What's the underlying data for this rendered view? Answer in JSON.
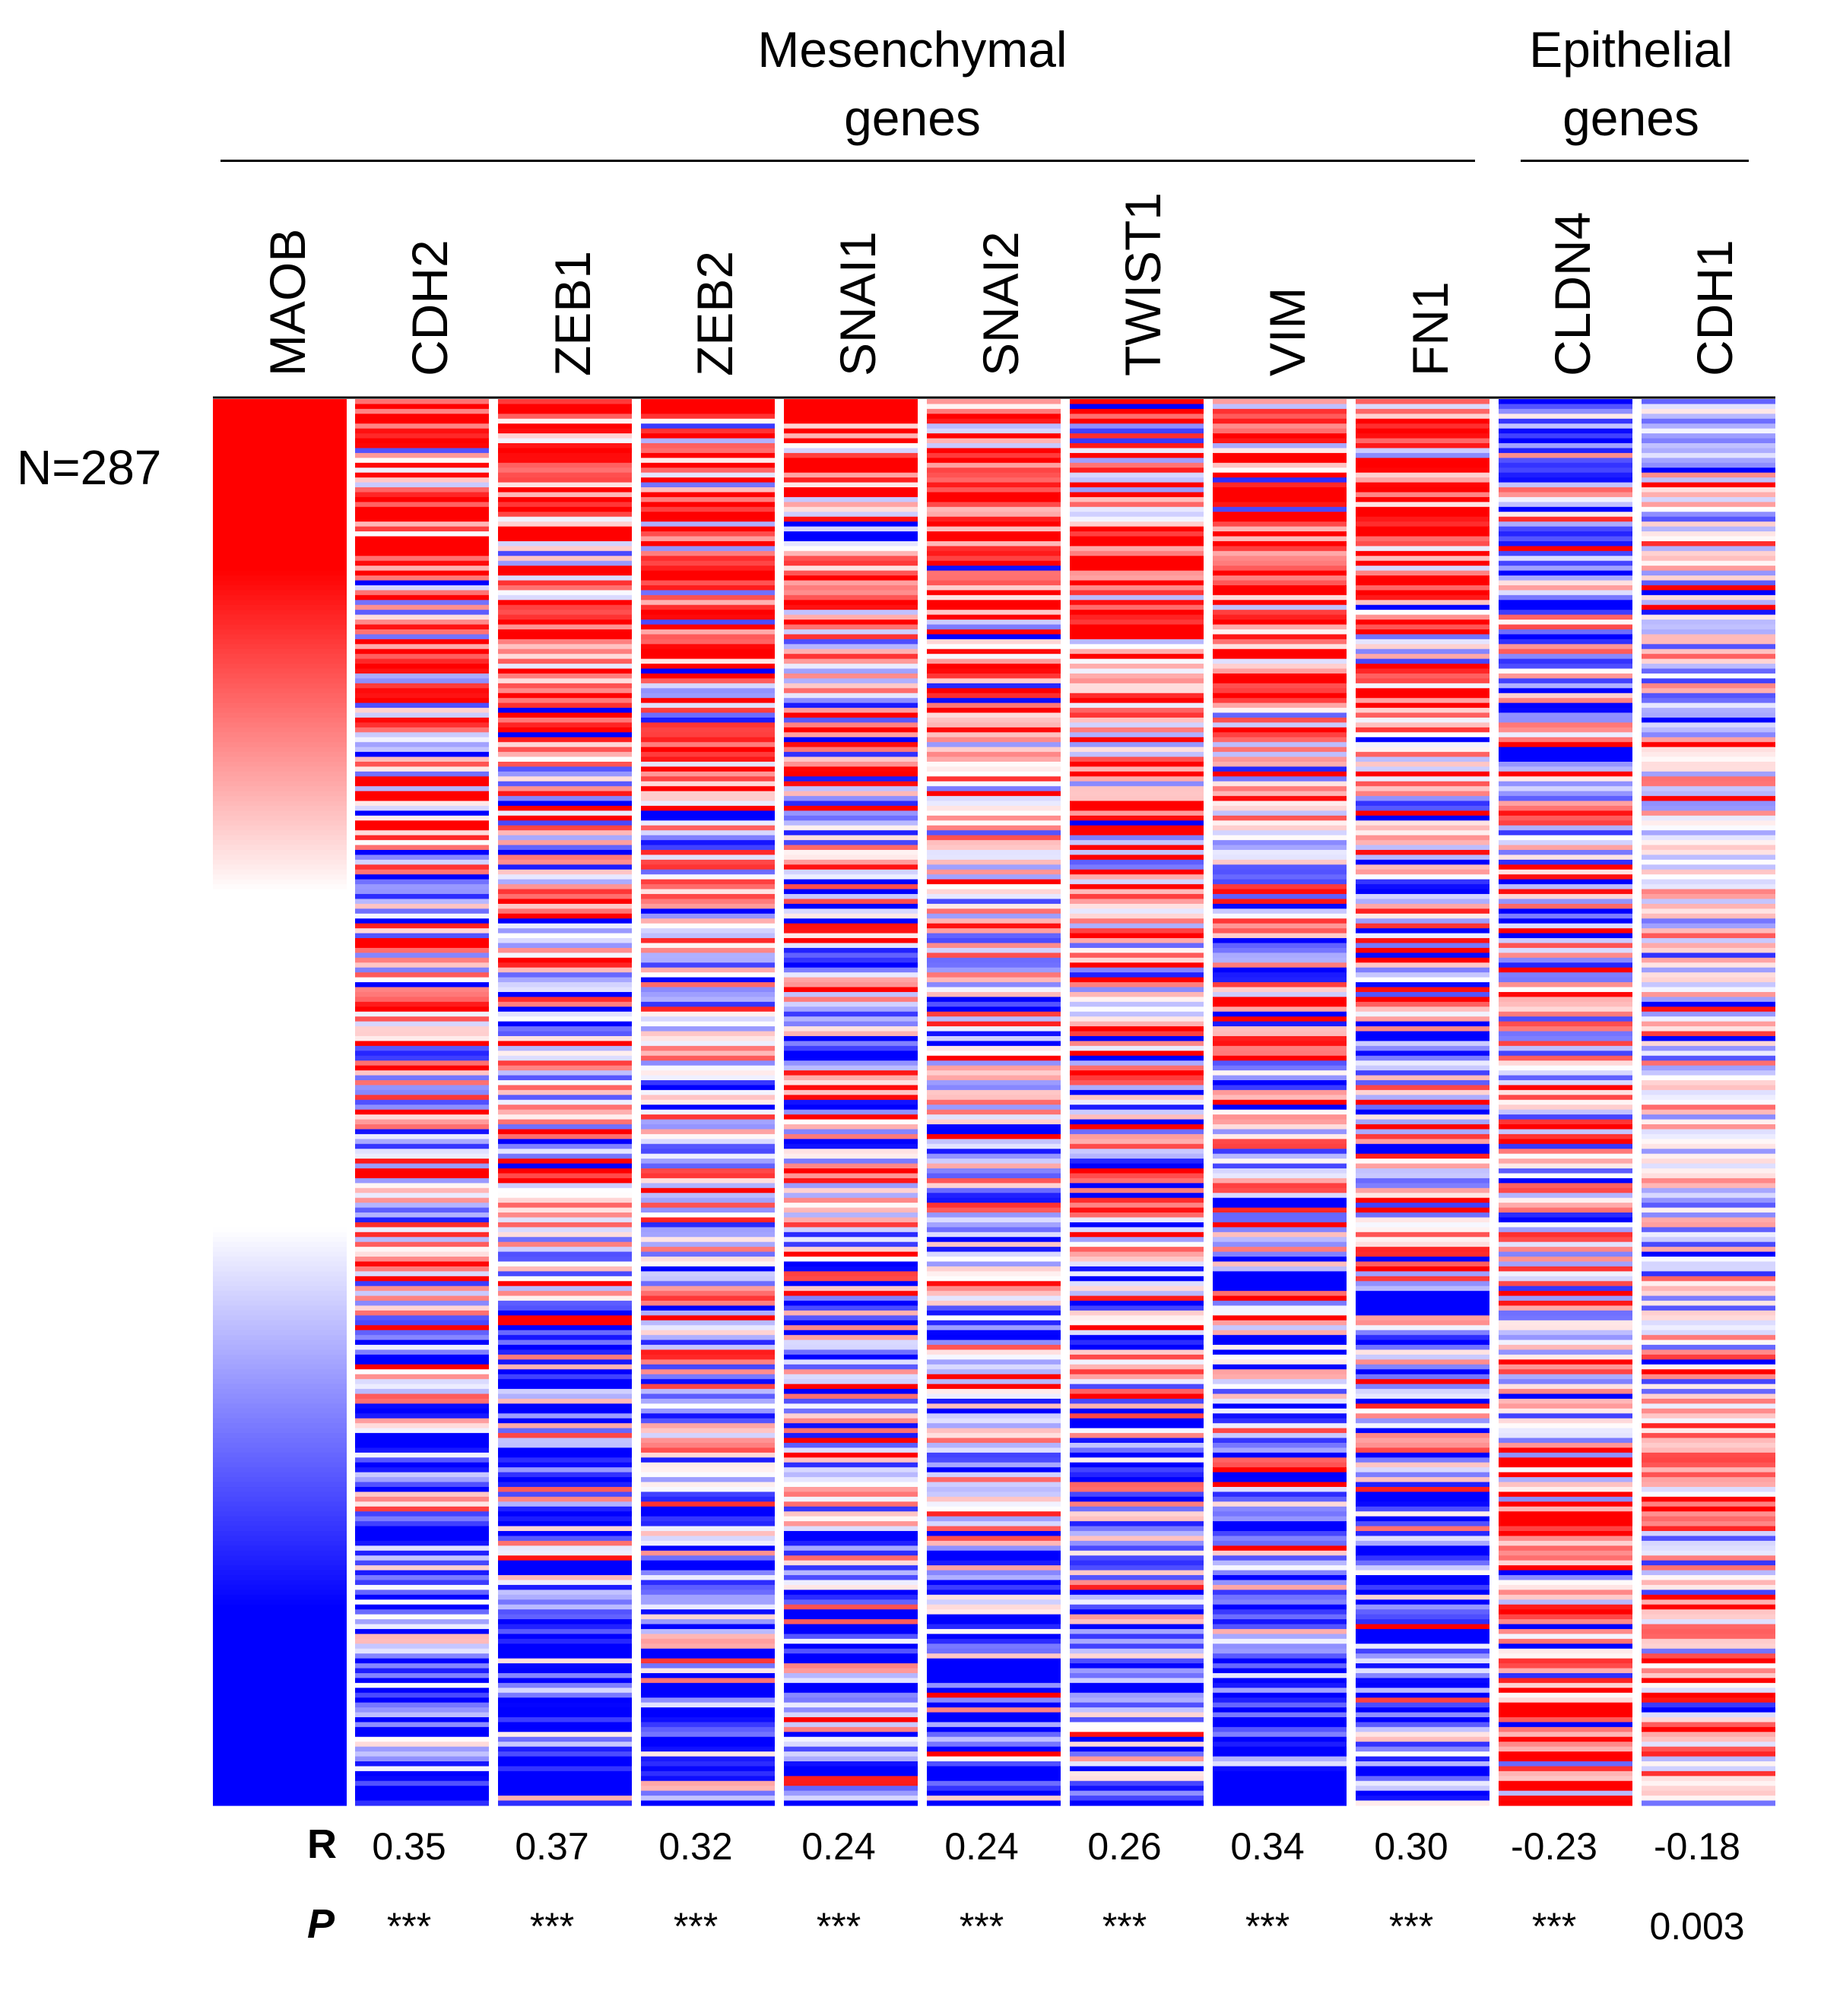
{
  "chart_data": {
    "type": "heatmap",
    "n_label": "N=287",
    "n_samples": 287,
    "groups": [
      {
        "name": "Mesenchymal genes",
        "line1": "Mesenchymal",
        "line2": "genes",
        "genes": [
          "CDH2",
          "ZEB1",
          "ZEB2",
          "SNAI1",
          "SNAI2",
          "TWIST1",
          "VIM",
          "FN1"
        ]
      },
      {
        "name": "Epithelial genes",
        "line1": "Epithelial",
        "line2": "genes",
        "genes": [
          "CLDN4",
          "CDH1"
        ]
      }
    ],
    "columns": [
      "MAOB",
      "CDH2",
      "ZEB1",
      "ZEB2",
      "SNAI1",
      "SNAI2",
      "TWIST1",
      "VIM",
      "FN1",
      "CLDN4",
      "CDH1"
    ],
    "sort_by": "MAOB",
    "color_high": "#ff0000",
    "color_mid": "#ffffff",
    "color_low": "#0000ff",
    "row_labels": {
      "r": "R",
      "p": "P"
    },
    "R": [
      "0.35",
      "0.37",
      "0.32",
      "0.24",
      "0.24",
      "0.26",
      "0.34",
      "0.30",
      "-0.23",
      "-0.18"
    ],
    "P": [
      "***",
      "***",
      "***",
      "***",
      "***",
      "***",
      "***",
      "***",
      "***",
      "0.003"
    ]
  }
}
